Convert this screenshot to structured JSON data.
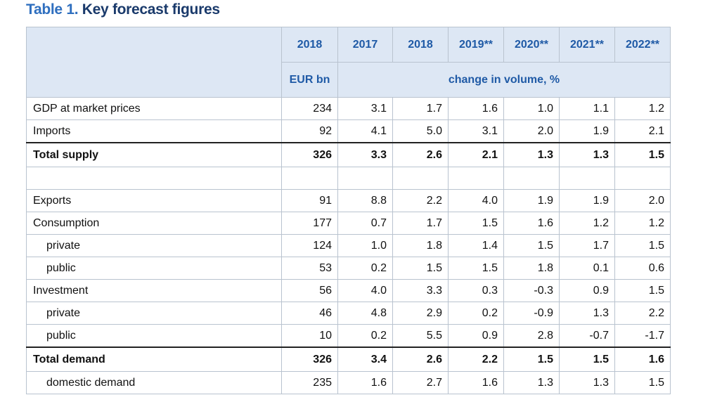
{
  "title": {
    "label": "Table 1.",
    "text": "Key forecast figures"
  },
  "table": {
    "columns": [
      "2018",
      "2017",
      "2018",
      "2019**",
      "2020**",
      "2021**",
      "2022**"
    ],
    "units": {
      "level": "EUR bn",
      "change": "change in volume, %"
    },
    "sections": [
      [
        {
          "label": "GDP at market prices",
          "cells": [
            "234",
            "3.1",
            "1.7",
            "1.6",
            "1.0",
            "1.1",
            "1.2"
          ]
        },
        {
          "label": "Imports",
          "cells": [
            "92",
            "4.1",
            "5.0",
            "3.1",
            "2.0",
            "1.9",
            "2.1"
          ]
        },
        {
          "label": "Total supply",
          "bold": true,
          "cells": [
            "326",
            "3.3",
            "2.6",
            "2.1",
            "1.3",
            "1.3",
            "1.5"
          ]
        }
      ],
      [
        {
          "label": "Exports",
          "cells": [
            "91",
            "8.8",
            "2.2",
            "4.0",
            "1.9",
            "1.9",
            "2.0"
          ]
        },
        {
          "label": "Consumption",
          "cells": [
            "177",
            "0.7",
            "1.7",
            "1.5",
            "1.6",
            "1.2",
            "1.2"
          ]
        },
        {
          "label": "private",
          "indent": true,
          "cells": [
            "124",
            "1.0",
            "1.8",
            "1.4",
            "1.5",
            "1.7",
            "1.5"
          ]
        },
        {
          "label": "public",
          "indent": true,
          "cells": [
            "53",
            "0.2",
            "1.5",
            "1.5",
            "1.8",
            "0.1",
            "0.6"
          ]
        },
        {
          "label": "Investment",
          "cells": [
            "56",
            "4.0",
            "3.3",
            "0.3",
            "-0.3",
            "0.9",
            "1.5"
          ]
        },
        {
          "label": "private",
          "indent": true,
          "cells": [
            "46",
            "4.8",
            "2.9",
            "0.2",
            "-0.9",
            "1.3",
            "2.2"
          ]
        },
        {
          "label": "public",
          "indent": true,
          "cells": [
            "10",
            "0.2",
            "5.5",
            "0.9",
            "2.8",
            "-0.7",
            "-1.7"
          ]
        },
        {
          "label": "Total demand",
          "bold": true,
          "cells": [
            "326",
            "3.4",
            "2.6",
            "2.2",
            "1.5",
            "1.5",
            "1.6"
          ]
        },
        {
          "label": "domestic demand",
          "indent": true,
          "cells": [
            "235",
            "1.6",
            "2.7",
            "1.6",
            "1.3",
            "1.3",
            "1.5"
          ]
        }
      ]
    ]
  }
}
